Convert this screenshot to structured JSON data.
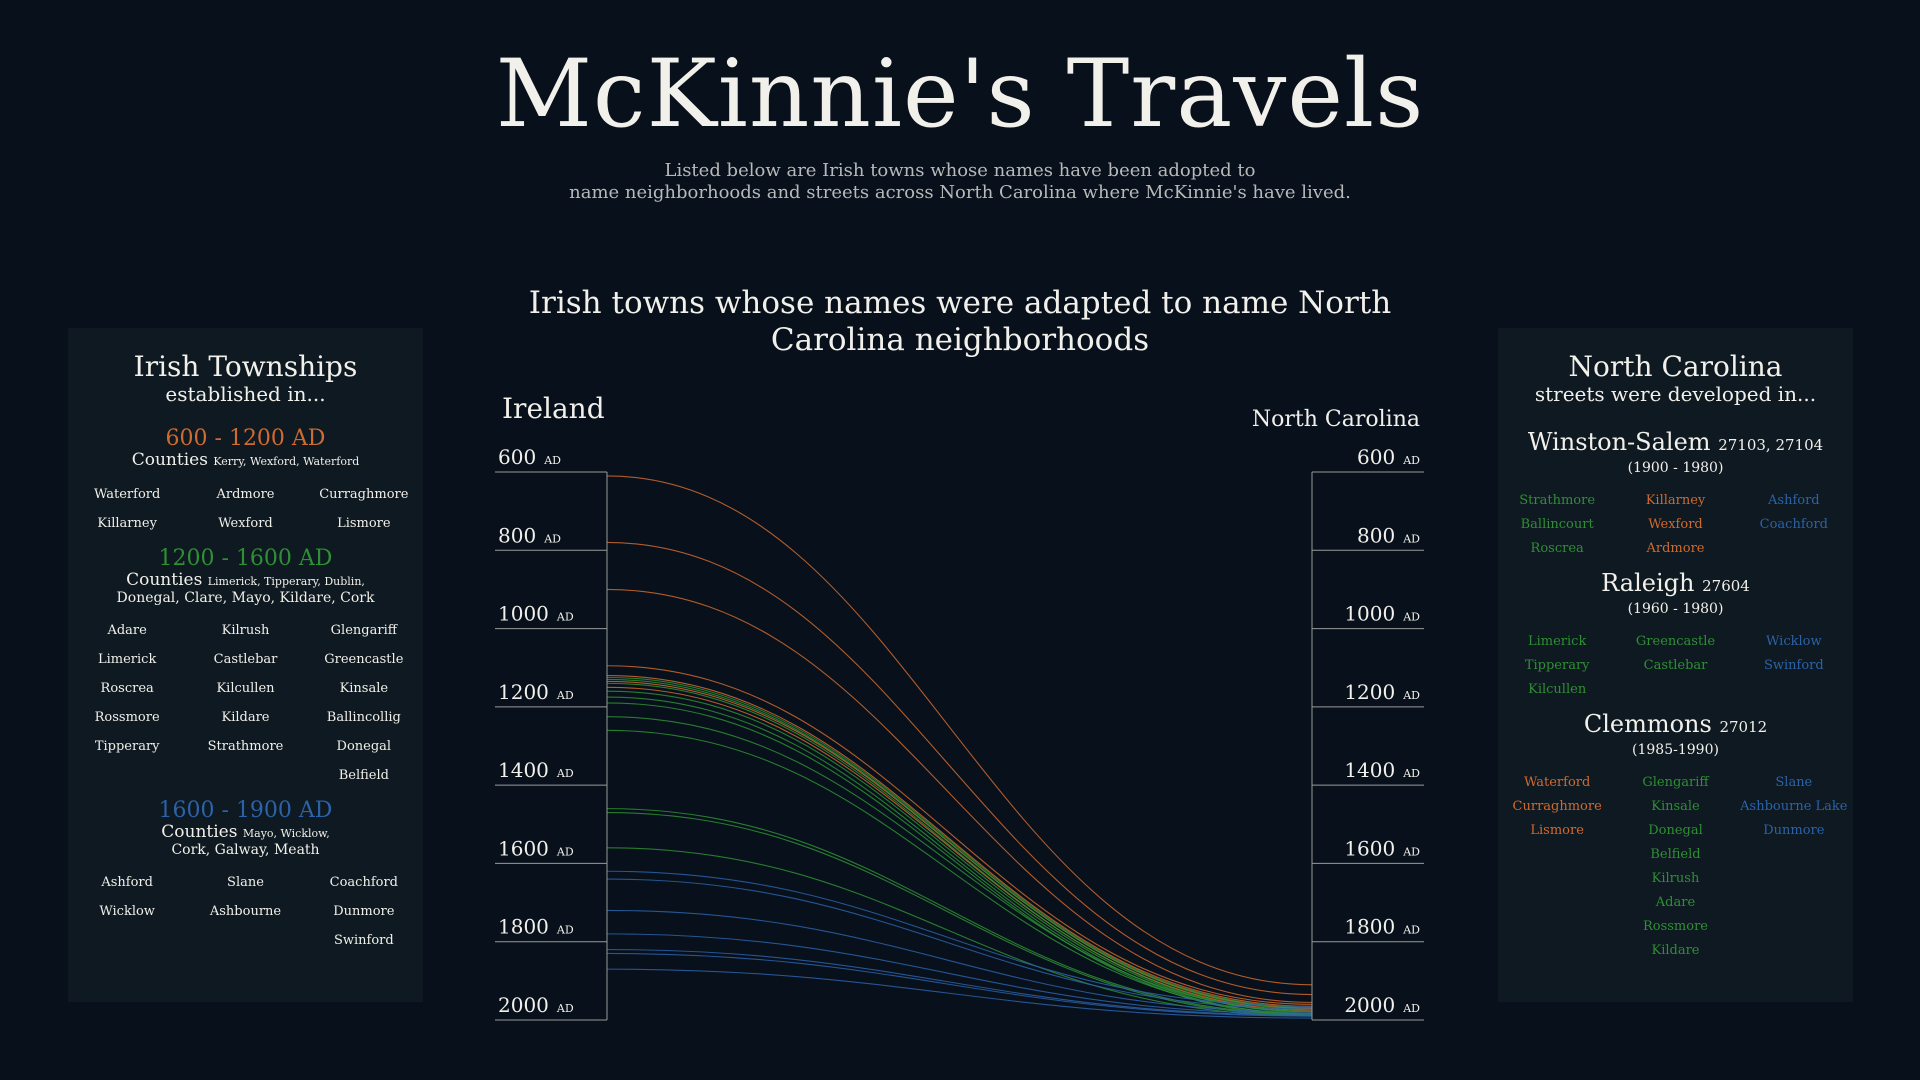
{
  "title": "McKinnie's Travels",
  "subtitle_line1": "Listed below are Irish towns whose names have been adopted to",
  "subtitle_line2": "name neighborhoods and streets across North Carolina where McKinnie's have lived.",
  "left_panel": {
    "title": "Irish Townships",
    "subtitle": "established in...",
    "eras": [
      {
        "range": "600 - 1200 AD",
        "color": "#d06a2e",
        "counties_label": "Counties",
        "counties_list": "Kerry, Wexford, Waterford",
        "counties_line2": "",
        "towns": [
          "Waterford",
          "Ardmore",
          "Curraghmore",
          "Killarney",
          "Wexford",
          "Lismore"
        ]
      },
      {
        "range": "1200 - 1600 AD",
        "color": "#2f8f34",
        "counties_label": "Counties",
        "counties_list": "Limerick, Tipperary, Dublin,",
        "counties_line2": "Donegal, Clare, Mayo, Kildare, Cork",
        "towns": [
          "Adare",
          "Kilrush",
          "Glengariff",
          "Limerick",
          "Castlebar",
          "Greencastle",
          "Roscrea",
          "Kilcullen",
          "Kinsale",
          "Rossmore",
          "Kildare",
          "Ballincollig",
          "Tipperary",
          "Strathmore",
          "Donegal",
          "",
          "",
          "Belfield"
        ]
      },
      {
        "range": "1600 - 1900 AD",
        "color": "#2b62a8",
        "counties_label": "Counties",
        "counties_list": "Mayo, Wicklow,",
        "counties_line2": "Cork, Galway, Meath",
        "towns": [
          "Ashford",
          "Slane",
          "Coachford",
          "Wicklow",
          "Ashbourne",
          "Dunmore",
          "",
          "",
          "Swinford"
        ]
      }
    ]
  },
  "right_panel": {
    "title": "North Carolina",
    "subtitle": "streets were developed in...",
    "cities": [
      {
        "name": "Winston-Salem",
        "zip": "27103, 27104",
        "years": "(1900 - 1980)",
        "cols": [
          {
            "color": "#2f8f34",
            "towns": [
              "Strathmore",
              "Ballincourt",
              "Roscrea"
            ]
          },
          {
            "color": "#d06a2e",
            "towns": [
              "Killarney",
              "Wexford",
              "Ardmore"
            ]
          },
          {
            "color": "#2b62a8",
            "towns": [
              "Ashford",
              "Coachford"
            ]
          }
        ]
      },
      {
        "name": "Raleigh",
        "zip": "27604",
        "years": "(1960 - 1980)",
        "cols": [
          {
            "color": "#2f8f34",
            "towns": [
              "Limerick",
              "Tipperary",
              "Kilcullen"
            ]
          },
          {
            "color": "#2f8f34",
            "towns": [
              "Greencastle",
              "Castlebar"
            ]
          },
          {
            "color": "#2b62a8",
            "towns": [
              "Wicklow",
              "Swinford"
            ]
          }
        ]
      },
      {
        "name": "Clemmons",
        "zip": "27012",
        "years": "(1985-1990)",
        "cols": [
          {
            "color": "#d06a2e",
            "towns": [
              "Waterford",
              "Curraghmore",
              "Lismore"
            ]
          },
          {
            "color": "#2f8f34",
            "towns": [
              "Glengariff",
              "Kinsale",
              "Donegal",
              "Belfield",
              "Kilrush",
              "Adare",
              "Rossmore",
              "Kildare"
            ]
          },
          {
            "color": "#2b62a8",
            "towns": [
              "Slane",
              "Ashbourne Lake",
              "Dunmore"
            ]
          }
        ]
      }
    ]
  },
  "chart_data": {
    "type": "line",
    "title": "Irish towns whose names were adapted to name North Carolina neighborhoods",
    "left_axis_label": "Ireland",
    "right_axis_label": "North Carolina",
    "ylim": [
      600,
      2000
    ],
    "tick_values": [
      600,
      800,
      1000,
      1200,
      1400,
      1600,
      1800,
      2000
    ],
    "tick_unit": "AD",
    "series": [
      {
        "from": 610,
        "to": 1910,
        "color": "#d06a2e"
      },
      {
        "from": 780,
        "to": 1935,
        "color": "#d06a2e"
      },
      {
        "from": 900,
        "to": 1955,
        "color": "#d06a2e"
      },
      {
        "from": 1095,
        "to": 1960,
        "color": "#d06a2e"
      },
      {
        "from": 1120,
        "to": 1965,
        "color": "#d06a2e"
      },
      {
        "from": 1135,
        "to": 1970,
        "color": "#d06a2e"
      },
      {
        "from": 1150,
        "to": 1975,
        "color": "#d06a2e"
      },
      {
        "from": 1125,
        "to": 1968,
        "color": "#2f8f34"
      },
      {
        "from": 1130,
        "to": 1972,
        "color": "#2f8f34"
      },
      {
        "from": 1140,
        "to": 1978,
        "color": "#2f8f34"
      },
      {
        "from": 1160,
        "to": 1980,
        "color": "#2f8f34"
      },
      {
        "from": 1175,
        "to": 1985,
        "color": "#2f8f34"
      },
      {
        "from": 1190,
        "to": 1988,
        "color": "#2f8f34"
      },
      {
        "from": 1225,
        "to": 1978,
        "color": "#2f8f34"
      },
      {
        "from": 1260,
        "to": 1983,
        "color": "#2f8f34"
      },
      {
        "from": 1460,
        "to": 1985,
        "color": "#2f8f34"
      },
      {
        "from": 1470,
        "to": 1988,
        "color": "#2f8f34"
      },
      {
        "from": 1560,
        "to": 1990,
        "color": "#2f8f34"
      },
      {
        "from": 1620,
        "to": 1965,
        "color": "#2b62a8"
      },
      {
        "from": 1640,
        "to": 1972,
        "color": "#2b62a8"
      },
      {
        "from": 1720,
        "to": 1980,
        "color": "#2b62a8"
      },
      {
        "from": 1780,
        "to": 1985,
        "color": "#2b62a8"
      },
      {
        "from": 1820,
        "to": 1988,
        "color": "#2b62a8"
      },
      {
        "from": 1830,
        "to": 1990,
        "color": "#2b62a8"
      },
      {
        "from": 1870,
        "to": 1995,
        "color": "#2b62a8"
      }
    ]
  }
}
